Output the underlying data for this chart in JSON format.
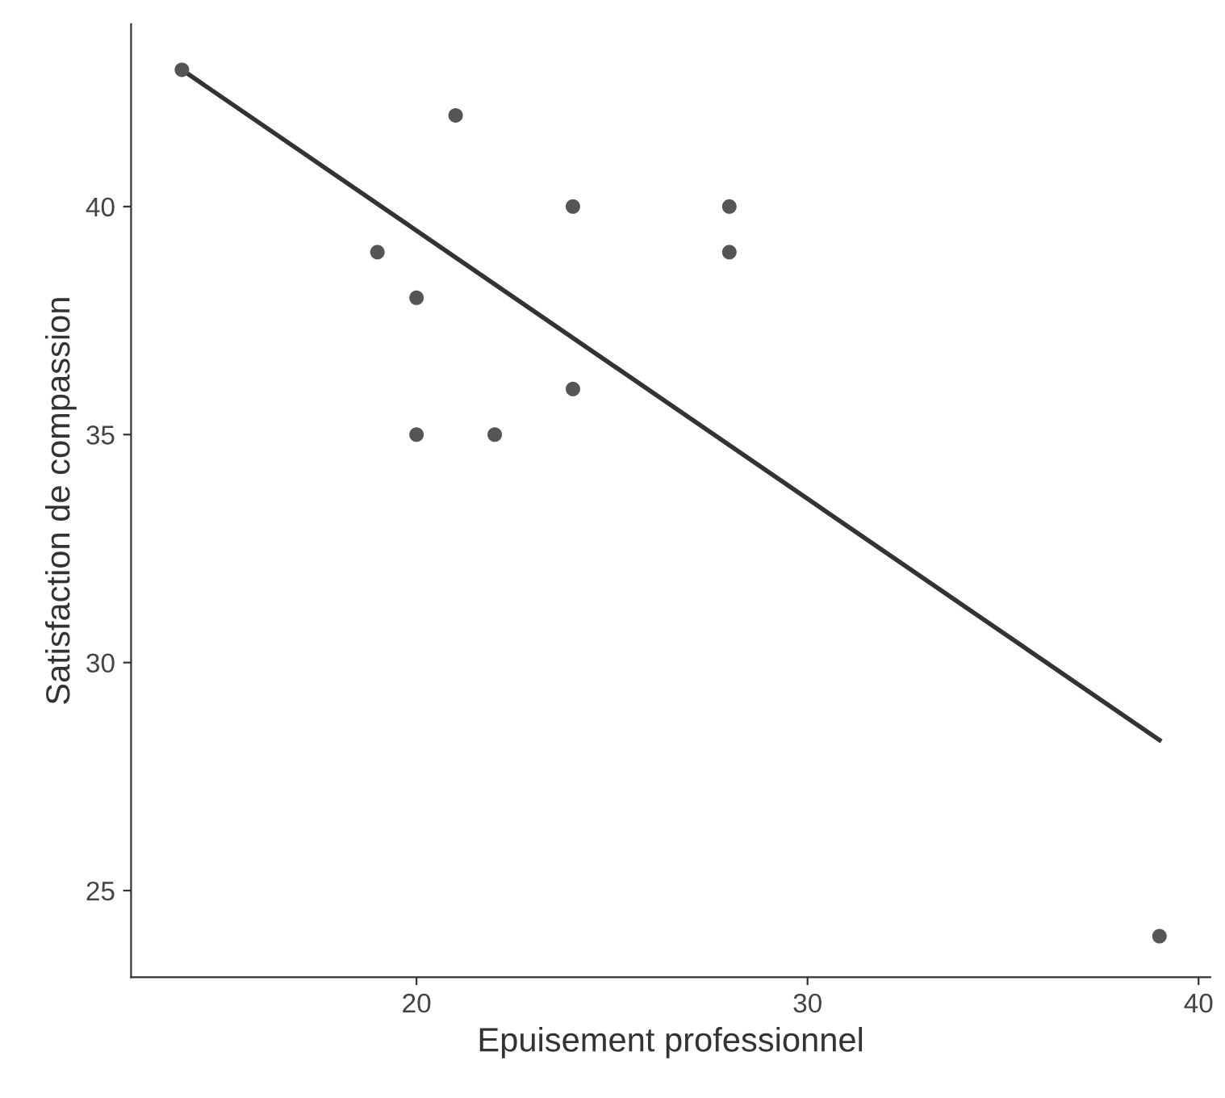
{
  "chart_data": {
    "type": "scatter",
    "xlabel": "Epuisement professionnel",
    "ylabel": "Satisfaction de compassion",
    "x": [
      14,
      21,
      19,
      20,
      20,
      22,
      24,
      24,
      28,
      28,
      39
    ],
    "series": [
      {
        "color": "#555555",
        "marker": "circle",
        "values": [
          43,
          42,
          39,
          38,
          35,
          35,
          40,
          36,
          40,
          39,
          24
        ]
      },
      {
        "type": "line",
        "color": "#333333",
        "x": [
          14,
          39
        ],
        "values": [
          43.0,
          28.3
        ],
        "marker": "none",
        "line_style": "solid"
      }
    ],
    "xlim": [
      12.7,
      40.3
    ],
    "ylim": [
      23.1,
      44
    ],
    "xticks": [
      20,
      30,
      40
    ],
    "yticks": [
      25,
      30,
      35,
      40
    ],
    "grid": false,
    "legend": false
  }
}
